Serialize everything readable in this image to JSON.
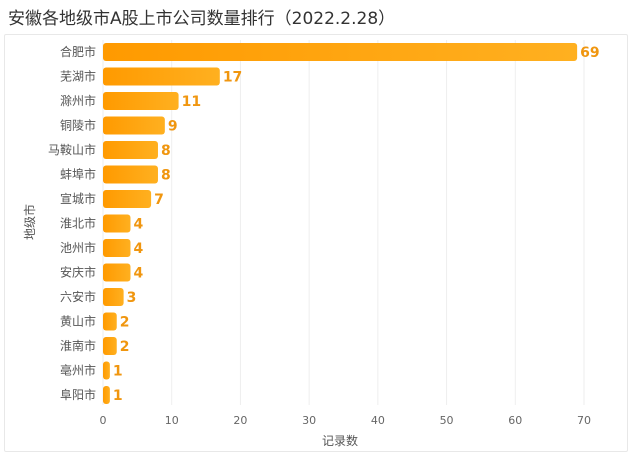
{
  "chart_data": {
    "type": "bar",
    "orientation": "horizontal",
    "title": "安徽各地级市A股上市公司数量排行（2022.2.28）",
    "xlabel": "记录数",
    "ylabel": "地级市",
    "xlim": [
      0,
      70
    ],
    "xticks": [
      0,
      10,
      20,
      30,
      40,
      50,
      60,
      70
    ],
    "grid": "vertical",
    "categories": [
      "合肥市",
      "芜湖市",
      "滁州市",
      "铜陵市",
      "马鞍山市",
      "蚌埠市",
      "宣城市",
      "淮北市",
      "池州市",
      "安庆市",
      "六安市",
      "黄山市",
      "淮南市",
      "亳州市",
      "阜阳市"
    ],
    "values": [
      69,
      17,
      11,
      9,
      8,
      8,
      7,
      4,
      4,
      4,
      3,
      2,
      2,
      1,
      1
    ],
    "colors": {
      "bar_start": "#ff9a00",
      "bar_end": "#ffb020",
      "label": "#f0960f",
      "grid": "#eeeeee"
    }
  }
}
